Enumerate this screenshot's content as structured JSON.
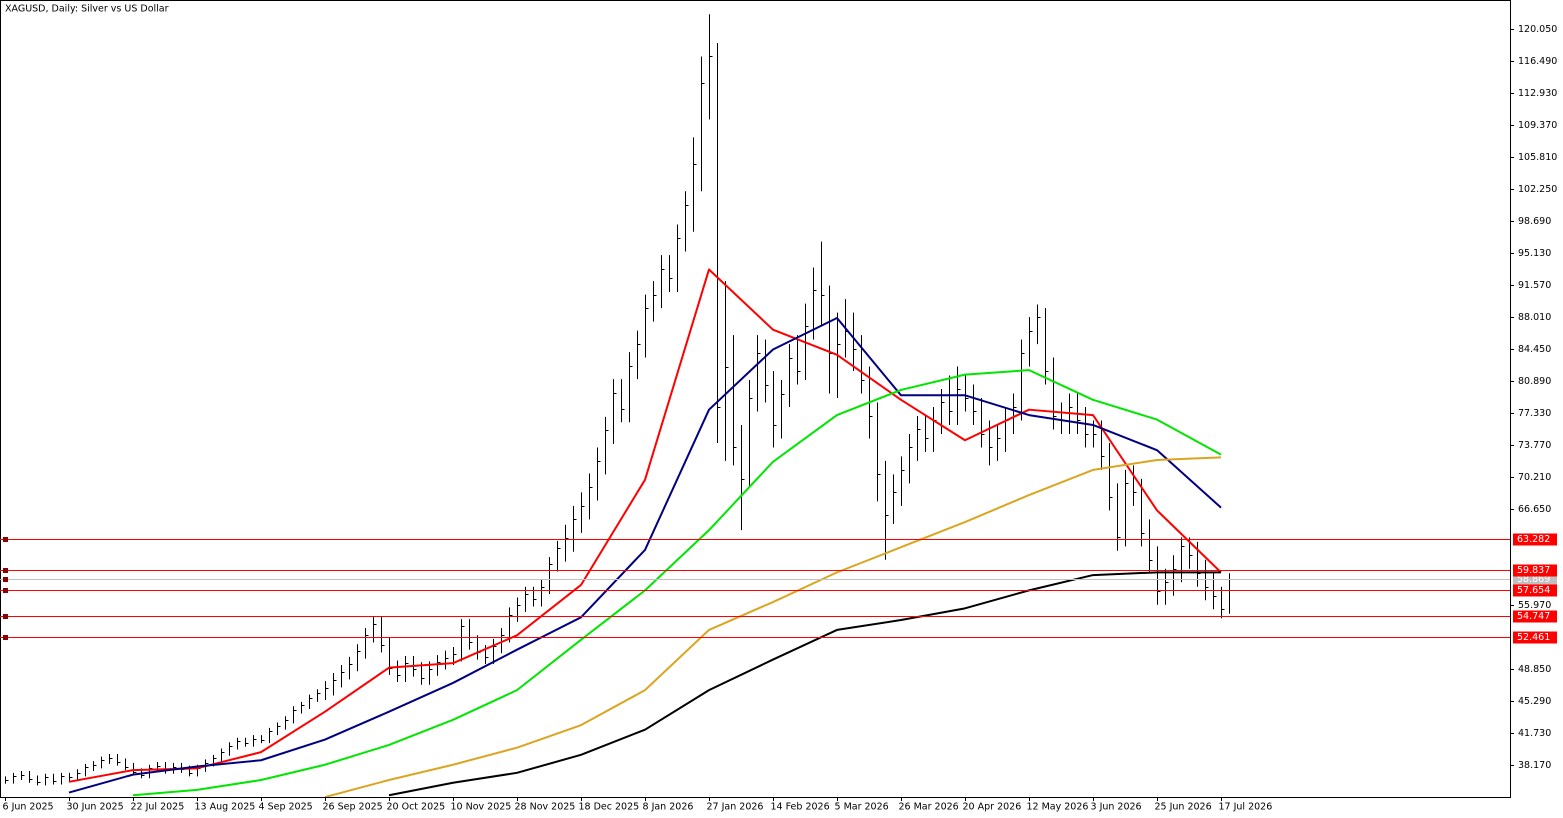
{
  "chart_data": {
    "type": "ohlc",
    "title": "XAGUSD, Daily:  Silver vs US Dollar",
    "ylim": [
      34.61,
      123.28
    ],
    "yticks": [
      {
        "value": 120.05,
        "label": "120.050"
      },
      {
        "value": 116.49,
        "label": "116.490"
      },
      {
        "value": 112.93,
        "label": "112.930"
      },
      {
        "value": 109.37,
        "label": "109.370"
      },
      {
        "value": 105.81,
        "label": "105.810"
      },
      {
        "value": 102.25,
        "label": "102.250"
      },
      {
        "value": 98.69,
        "label": "98.690"
      },
      {
        "value": 95.13,
        "label": "95.130"
      },
      {
        "value": 91.57,
        "label": "91.570"
      },
      {
        "value": 88.01,
        "label": "88.010"
      },
      {
        "value": 84.45,
        "label": "84.450"
      },
      {
        "value": 80.89,
        "label": "80.890"
      },
      {
        "value": 77.33,
        "label": "77.330"
      },
      {
        "value": 73.77,
        "label": "73.770"
      },
      {
        "value": 70.21,
        "label": "70.210"
      },
      {
        "value": 66.65,
        "label": "66.650"
      },
      {
        "value": 55.97,
        "label": "55.970"
      },
      {
        "value": 48.85,
        "label": "48.850"
      },
      {
        "value": 45.29,
        "label": "45.290"
      },
      {
        "value": 41.73,
        "label": "41.730"
      },
      {
        "value": 38.17,
        "label": "38.170"
      }
    ],
    "categories": [
      "6 Jun 2025",
      null,
      null,
      null,
      null,
      null,
      null,
      null,
      "30 Jun 2025",
      null,
      null,
      null,
      null,
      null,
      null,
      null,
      "22 Jul 2025",
      null,
      null,
      null,
      null,
      null,
      null,
      null,
      "13 Aug 2025",
      null,
      null,
      null,
      null,
      null,
      null,
      null,
      "4 Sep 2025",
      null,
      null,
      null,
      null,
      null,
      null,
      null,
      "26 Sep 2025",
      null,
      null,
      null,
      null,
      null,
      null,
      null,
      "20 Oct 2025",
      null,
      null,
      null,
      null,
      null,
      null,
      null,
      "10 Nov 2025",
      null,
      null,
      null,
      null,
      null,
      null,
      null,
      "28 Nov 2025",
      null,
      null,
      null,
      null,
      null,
      null,
      null,
      "18 Dec 2025",
      null,
      null,
      null,
      null,
      null,
      null,
      null,
      "8 Jan 2026",
      null,
      null,
      null,
      null,
      null,
      null,
      null,
      "27 Jan 2026",
      null,
      null,
      null,
      null,
      null,
      null,
      null,
      "14 Feb 2026",
      null,
      null,
      null,
      null,
      null,
      null,
      null,
      "5 Mar 2026",
      null,
      null,
      null,
      null,
      null,
      null,
      null,
      "26 Mar 2026",
      null,
      null,
      null,
      null,
      null,
      null,
      null,
      "20 Apr 2026",
      null,
      null,
      null,
      null,
      null,
      null,
      null,
      "12 May 2026",
      null,
      null,
      null,
      null,
      null,
      null,
      null,
      "3 Jun 2026",
      null,
      null,
      null,
      null,
      null,
      null,
      null,
      "25 Jun 2026",
      null,
      null,
      null,
      null,
      null,
      null,
      null,
      "17 Jul 2026",
      null
    ],
    "bar_color": "#000000",
    "high": [
      36.9,
      37.3,
      37.5,
      37.5,
      37.0,
      37.2,
      37.2,
      37.3,
      37.3,
      37.7,
      38.3,
      38.6,
      39.1,
      39.4,
      39.4,
      38.9,
      38.4,
      37.8,
      38.2,
      38.5,
      38.5,
      38.4,
      38.4,
      38.1,
      38.2,
      38.8,
      39.3,
      40.0,
      40.7,
      41.2,
      41.2,
      41.5,
      41.5,
      42.3,
      42.9,
      43.6,
      44.7,
      45.2,
      46.0,
      46.6,
      47.5,
      48.4,
      49.3,
      50.2,
      51.6,
      53.4,
      54.7,
      54.7,
      52.3,
      49.8,
      50.3,
      50.3,
      49.6,
      49.7,
      50.4,
      50.9,
      51.3,
      54.4,
      54.4,
      52.6,
      51.5,
      52.2,
      53.4,
      55.7,
      56.8,
      58.0,
      58.0,
      58.8,
      61.3,
      63.1,
      64.9,
      67.0,
      68.5,
      70.6,
      73.5,
      76.9,
      81.1,
      81.1,
      84.1,
      86.5,
      90.5,
      92.0,
      94.9,
      94.9,
      98.3,
      102.0,
      108.0,
      117.0,
      121.7,
      118.5,
      92.0,
      86.0,
      76.0,
      81.0,
      86.0,
      85.5,
      82.0,
      81.0,
      85.0,
      86.0,
      89.5,
      93.5,
      96.4,
      91.5,
      88.5,
      90.0,
      88.5,
      86.0,
      82.5,
      78.5,
      72.0,
      70.5,
      72.5,
      75.0,
      77.0,
      77.0,
      78.0,
      80.0,
      81.5,
      82.5,
      81.5,
      80.5,
      79.0,
      76.5,
      76.0,
      78.0,
      79.5,
      85.5,
      88.0,
      89.4,
      89.0,
      83.5,
      78.5,
      79.5,
      79.5,
      78.0,
      76.5,
      76.5,
      74.0,
      69.5,
      71.0,
      71.5,
      70.0,
      65.5,
      62.5,
      60.0,
      61.5,
      63.5,
      63.5,
      63.0,
      61.0,
      59.5,
      58.0,
      59.5
    ],
    "low": [
      36.1,
      36.1,
      36.5,
      36.2,
      35.9,
      35.9,
      36.0,
      36.0,
      36.4,
      36.4,
      36.9,
      37.5,
      37.8,
      38.3,
      38.1,
      37.6,
      37.0,
      36.7,
      36.7,
      37.4,
      37.2,
      37.2,
      37.3,
      36.9,
      36.9,
      37.4,
      38.0,
      38.5,
      39.2,
      39.9,
      40.2,
      40.2,
      40.6,
      40.6,
      41.5,
      42.1,
      42.8,
      43.9,
      44.4,
      45.2,
      45.4,
      45.9,
      46.8,
      47.7,
      48.6,
      50.0,
      51.8,
      50.7,
      48.2,
      47.4,
      47.4,
      48.0,
      47.1,
      47.1,
      48.1,
      48.8,
      49.3,
      49.7,
      51.0,
      49.9,
      49.4,
      49.4,
      50.6,
      51.8,
      54.1,
      55.2,
      55.8,
      55.8,
      57.2,
      59.7,
      60.8,
      61.9,
      64.0,
      65.5,
      67.6,
      70.5,
      73.9,
      76.3,
      76.3,
      81.1,
      83.5,
      87.5,
      89.0,
      90.8,
      90.8,
      95.3,
      97.5,
      102.0,
      110.0,
      74.0,
      72.0,
      71.5,
      64.3,
      69.0,
      77.5,
      78.5,
      73.5,
      74.5,
      78.0,
      80.5,
      81.0,
      85.5,
      87.0,
      79.5,
      79.0,
      83.5,
      82.0,
      79.5,
      74.5,
      67.5,
      61.0,
      65.0,
      67.0,
      69.5,
      72.0,
      73.0,
      73.0,
      75.0,
      76.0,
      76.0,
      77.5,
      76.0,
      73.5,
      71.5,
      72.0,
      73.0,
      75.0,
      76.5,
      82.5,
      85.0,
      80.5,
      75.5,
      75.0,
      75.0,
      75.0,
      73.5,
      73.5,
      71.0,
      66.5,
      62.0,
      62.5,
      67.0,
      62.5,
      59.5,
      56.0,
      56.0,
      57.0,
      58.5,
      60.0,
      58.0,
      56.5,
      55.5,
      54.5,
      55.0
    ],
    "close": [
      36.5,
      36.9,
      37.1,
      36.6,
      36.3,
      36.8,
      36.4,
      36.9,
      36.8,
      37.3,
      37.9,
      38.2,
      38.7,
      39.0,
      38.5,
      38.0,
      37.4,
      37.1,
      37.8,
      38.1,
      37.6,
      38.0,
      37.7,
      37.3,
      37.8,
      38.4,
      38.9,
      39.6,
      40.3,
      40.8,
      40.6,
      41.1,
      41.0,
      41.9,
      42.5,
      43.2,
      44.3,
      44.8,
      45.6,
      46.2,
      46.7,
      47.6,
      48.5,
      49.4,
      50.8,
      52.6,
      53.9,
      51.5,
      49.0,
      48.2,
      49.5,
      48.8,
      47.9,
      48.9,
      49.6,
      50.1,
      50.5,
      53.6,
      51.8,
      50.7,
      50.2,
      51.4,
      52.6,
      54.9,
      56.0,
      57.2,
      56.6,
      58.0,
      60.5,
      62.3,
      63.4,
      65.5,
      67.0,
      69.1,
      72.0,
      75.4,
      79.6,
      77.8,
      82.6,
      85.0,
      89.0,
      90.5,
      93.4,
      92.3,
      96.8,
      100.5,
      105.0,
      114.0,
      117.0,
      78.0,
      82.5,
      73.5,
      70.0,
      79.0,
      84.0,
      80.5,
      76.0,
      79.5,
      83.5,
      82.0,
      87.0,
      91.0,
      90.5,
      84.0,
      85.0,
      86.5,
      84.5,
      81.0,
      77.0,
      70.5,
      66.0,
      68.5,
      71.0,
      73.5,
      75.5,
      74.5,
      76.5,
      78.5,
      77.5,
      80.0,
      79.0,
      77.5,
      75.0,
      73.5,
      74.5,
      76.5,
      78.0,
      84.0,
      86.5,
      88.0,
      82.0,
      77.0,
      76.5,
      78.0,
      76.5,
      75.0,
      75.0,
      72.5,
      68.0,
      63.5,
      69.5,
      68.5,
      64.0,
      61.0,
      57.5,
      58.5,
      60.0,
      62.5,
      61.5,
      59.5,
      58.0,
      57.0,
      55.5,
      58.9
    ],
    "lines_x": [
      0,
      8,
      16,
      24,
      32,
      40,
      48,
      56,
      64,
      72,
      80,
      88,
      96,
      104,
      112,
      120,
      128,
      136,
      144,
      152
    ],
    "lines": [
      {
        "color": "#ff0000",
        "values": [
          null,
          36.3,
          37.6,
          37.8,
          39.6,
          44.1,
          49.0,
          49.5,
          52.6,
          58.2,
          69.9,
          93.3,
          86.6,
          83.8,
          78.8,
          74.3,
          77.7,
          77.1,
          66.5,
          59.6
        ]
      },
      {
        "color": "#000080",
        "values": [
          null,
          35.1,
          37.1,
          38.0,
          38.7,
          41.0,
          44.1,
          47.3,
          51.0,
          54.6,
          62.1,
          77.7,
          84.4,
          87.9,
          79.3,
          79.3,
          77.1,
          76.0,
          73.2,
          66.8
        ]
      },
      {
        "color": "#00e600",
        "values": [
          null,
          null,
          34.8,
          35.4,
          36.5,
          38.2,
          40.4,
          43.2,
          46.5,
          52.1,
          57.6,
          64.3,
          71.9,
          77.1,
          79.9,
          81.6,
          82.1,
          78.8,
          76.6,
          72.7
        ]
      },
      {
        "color": "#daa520",
        "values": [
          null,
          null,
          null,
          null,
          null,
          34.6,
          36.5,
          38.2,
          40.1,
          42.6,
          46.5,
          53.2,
          56.3,
          59.6,
          62.4,
          65.2,
          68.2,
          71.0,
          72.1,
          72.4
        ]
      },
      {
        "color": "#000000",
        "values": [
          null,
          null,
          null,
          null,
          null,
          null,
          34.8,
          36.2,
          37.3,
          39.3,
          42.1,
          46.5,
          49.9,
          53.2,
          54.3,
          55.6,
          57.6,
          59.3,
          59.6,
          59.6
        ]
      }
    ],
    "levels": [
      63.282,
      59.837,
      57.654,
      54.747,
      52.461
    ],
    "level_color": "#ff0000",
    "current_price": 58.869,
    "current_color": "#c0c0c0"
  }
}
